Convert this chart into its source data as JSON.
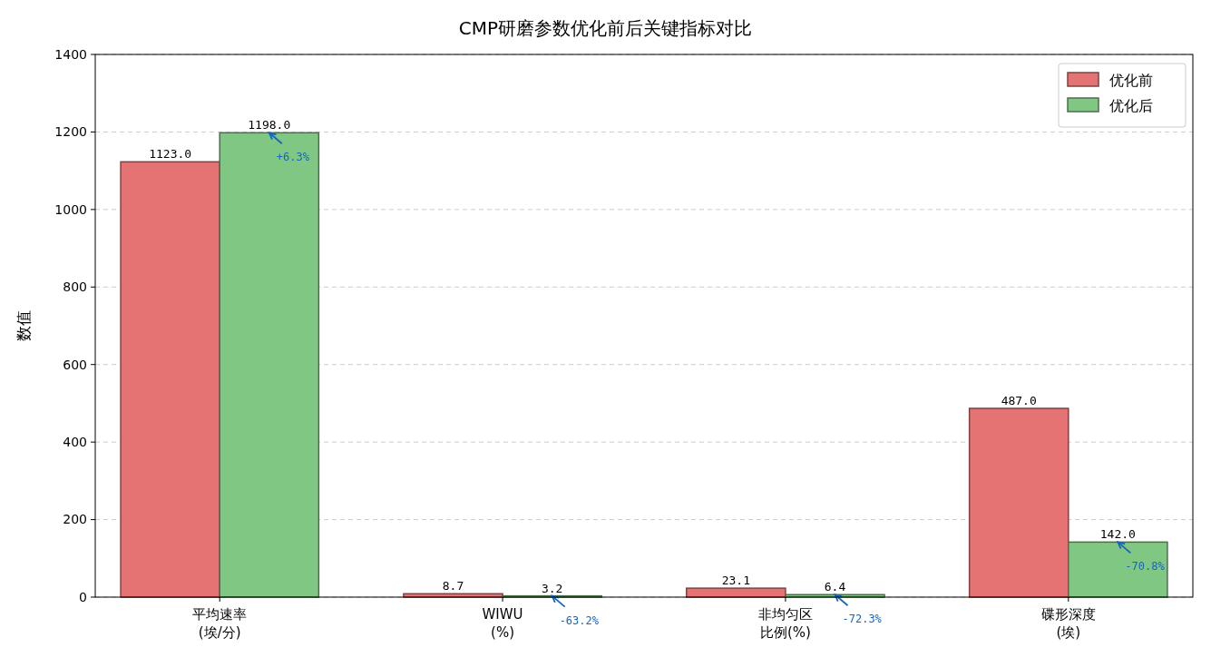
{
  "chart_data": {
    "type": "bar",
    "title": "CMP研磨参数优化前后关键指标对比",
    "ylabel": "数值",
    "categories": [
      "平均速率(埃/分)",
      "WIWU(%)",
      "非均匀区比例(%)",
      "碟形深度(埃)"
    ],
    "series": [
      {
        "name": "优化前",
        "color": "#e57373",
        "values": [
          1123,
          8.7,
          23.1,
          487
        ],
        "value_labels": [
          "1123.0",
          "8.7",
          "23.1",
          "487.0"
        ]
      },
      {
        "name": "优化后",
        "color": "#81c784",
        "values": [
          1198,
          3.2,
          6.4,
          142
        ],
        "value_labels": [
          "1198.0",
          "3.2",
          "6.4",
          "142.0"
        ]
      }
    ],
    "ylim": [
      0,
      1400
    ],
    "yticks": [
      0,
      200,
      400,
      600,
      800,
      1000,
      1200,
      1400
    ],
    "grid": "y",
    "legend": "top right",
    "annotations": [
      "+6.3%",
      "-63.2%",
      "-72.3%",
      "-70.8%"
    ]
  }
}
